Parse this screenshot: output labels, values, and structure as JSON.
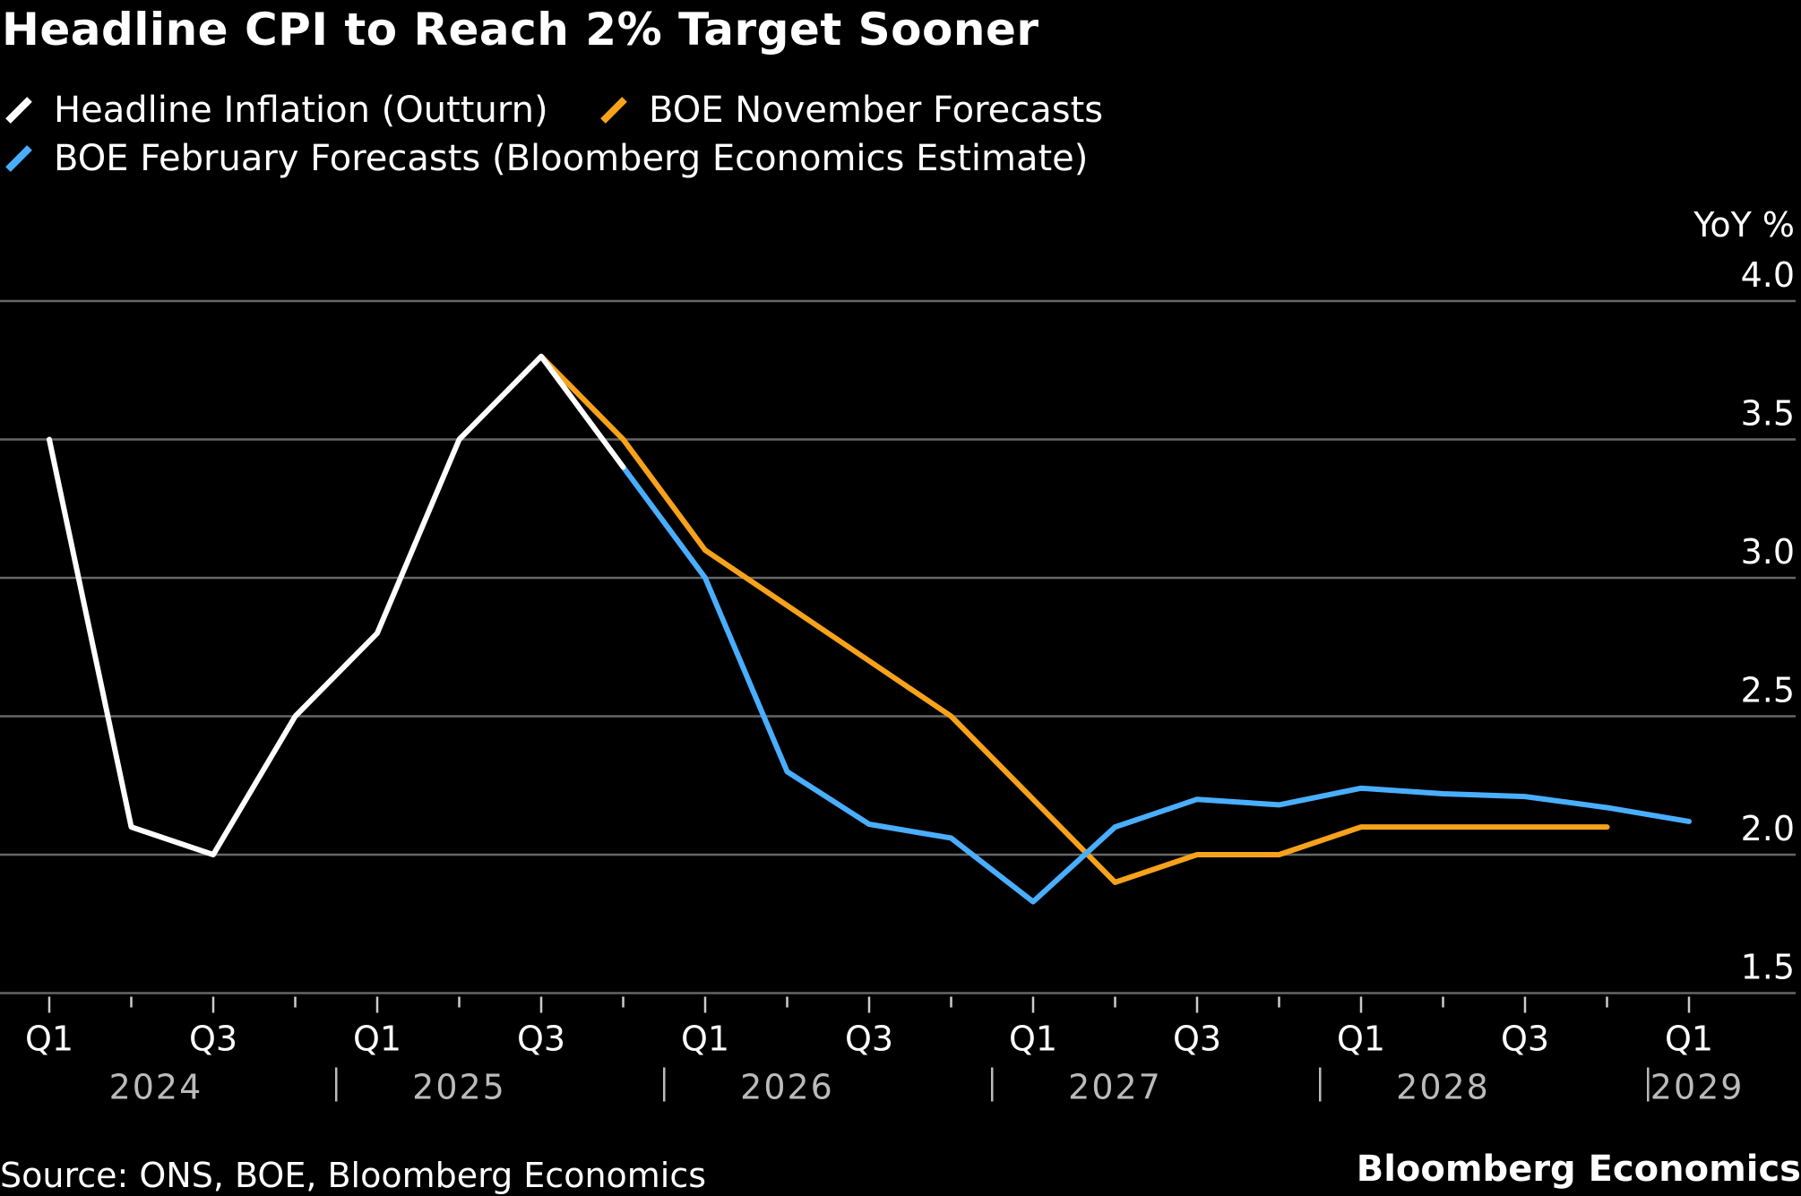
{
  "title": "Headline CPI to Reach 2% Target Sooner",
  "source": "Source: ONS, BOE, Bloomberg Economics",
  "brand": "Bloomberg Economics",
  "chart_data": {
    "type": "line",
    "title": "Headline CPI to Reach 2% Target Sooner",
    "ylabel": "YoY %",
    "xlabel": "",
    "ylim": [
      1.5,
      4.0
    ],
    "yticks": [
      "1.5",
      "2.0",
      "2.5",
      "3.0",
      "3.5",
      "4.0"
    ],
    "ytick_values": [
      1.5,
      2.0,
      2.5,
      3.0,
      3.5,
      4.0
    ],
    "grid": true,
    "legend_placement": "top-left",
    "x": [
      "2024Q1",
      "2024Q2",
      "2024Q3",
      "2024Q4",
      "2025Q1",
      "2025Q2",
      "2025Q3",
      "2025Q4",
      "2026Q1",
      "2026Q2",
      "2026Q3",
      "2026Q4",
      "2027Q1",
      "2027Q2",
      "2027Q3",
      "2027Q4",
      "2028Q1",
      "2028Q2",
      "2028Q3",
      "2028Q4",
      "2029Q1"
    ],
    "quarter_labels": [
      "Q1",
      "",
      "Q3",
      "",
      "Q1",
      "",
      "Q3",
      "",
      "Q1",
      "",
      "Q3",
      "",
      "Q1",
      "",
      "Q3",
      "",
      "Q1",
      "",
      "Q3",
      "",
      "Q1"
    ],
    "year_labels": [
      "2024",
      "2025",
      "2026",
      "2027",
      "2028",
      "2029"
    ],
    "series": [
      {
        "name": "Headline Inflation (Outturn)",
        "color": "#ffffff",
        "values": [
          3.5,
          2.1,
          2.0,
          2.5,
          2.8,
          3.5,
          3.8,
          3.4,
          null,
          null,
          null,
          null,
          null,
          null,
          null,
          null,
          null,
          null,
          null,
          null,
          null
        ]
      },
      {
        "name": "BOE November Forecasts",
        "color": "#f7a21b",
        "values": [
          null,
          null,
          null,
          null,
          null,
          null,
          3.8,
          3.5,
          3.1,
          2.9,
          2.7,
          2.5,
          2.2,
          1.9,
          2.0,
          2.0,
          2.1,
          2.1,
          2.1,
          2.1,
          null
        ]
      },
      {
        "name": "BOE February Forecasts (Bloomberg Economics Estimate)",
        "color": "#4aaeff",
        "values": [
          null,
          null,
          null,
          null,
          null,
          null,
          null,
          3.4,
          3.0,
          2.3,
          2.11,
          2.06,
          1.83,
          2.1,
          2.2,
          2.18,
          2.24,
          2.22,
          2.21,
          2.17,
          2.12
        ]
      }
    ]
  }
}
